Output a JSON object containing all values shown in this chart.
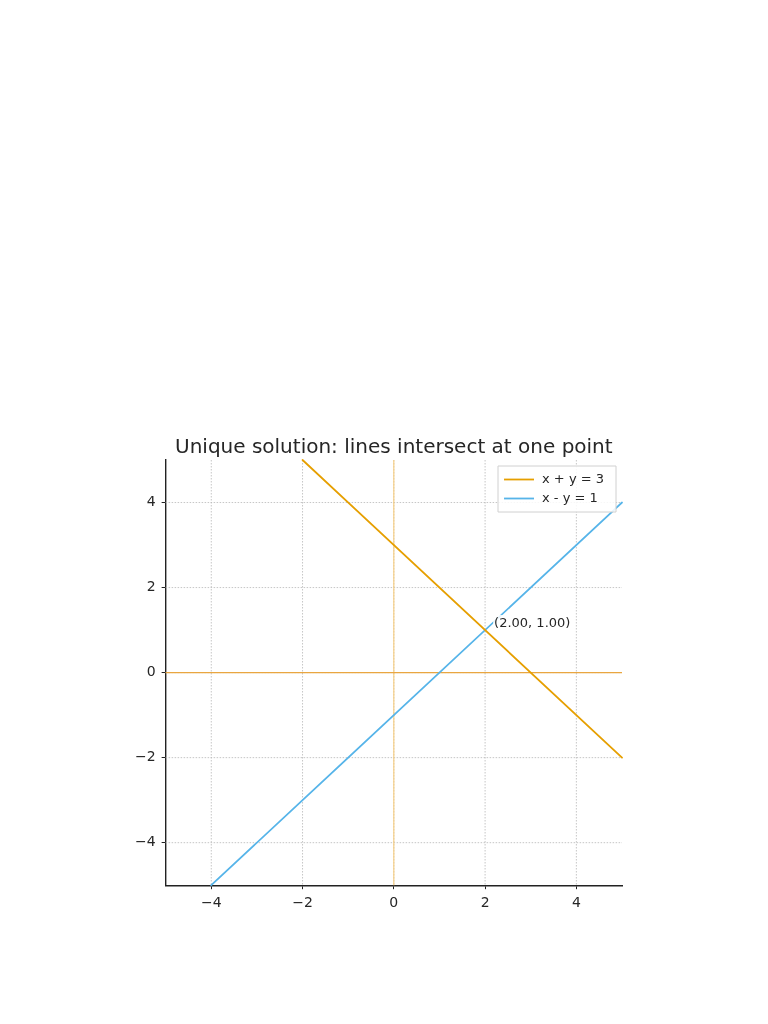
{
  "chart_data": {
    "type": "line",
    "title": "Unique solution: lines intersect at one point",
    "series": [
      {
        "name": "x + y = 3",
        "color": "#e69f00",
        "x": [
          -2,
          5
        ],
        "values": [
          5,
          -2
        ]
      },
      {
        "name": "x - y = 1",
        "color": "#56b4e9",
        "x": [
          -4,
          5
        ],
        "values": [
          -5,
          4
        ]
      }
    ],
    "xlim": [
      -5,
      5
    ],
    "ylim": [
      -5,
      5
    ],
    "xticks": [
      -4,
      -2,
      0,
      2,
      4
    ],
    "yticks": [
      -4,
      -2,
      0,
      2,
      4
    ],
    "ref_lines": [
      {
        "axis": "x",
        "value": 0,
        "color": "#f7cf85"
      },
      {
        "axis": "y",
        "value": 0,
        "color": "#e9a640"
      }
    ],
    "annotations": [
      {
        "text": "(2.00, 1.00)",
        "x": 2,
        "y": 1
      }
    ],
    "grid": true,
    "legend": "top right",
    "marker": "none",
    "line_style": "solid"
  }
}
